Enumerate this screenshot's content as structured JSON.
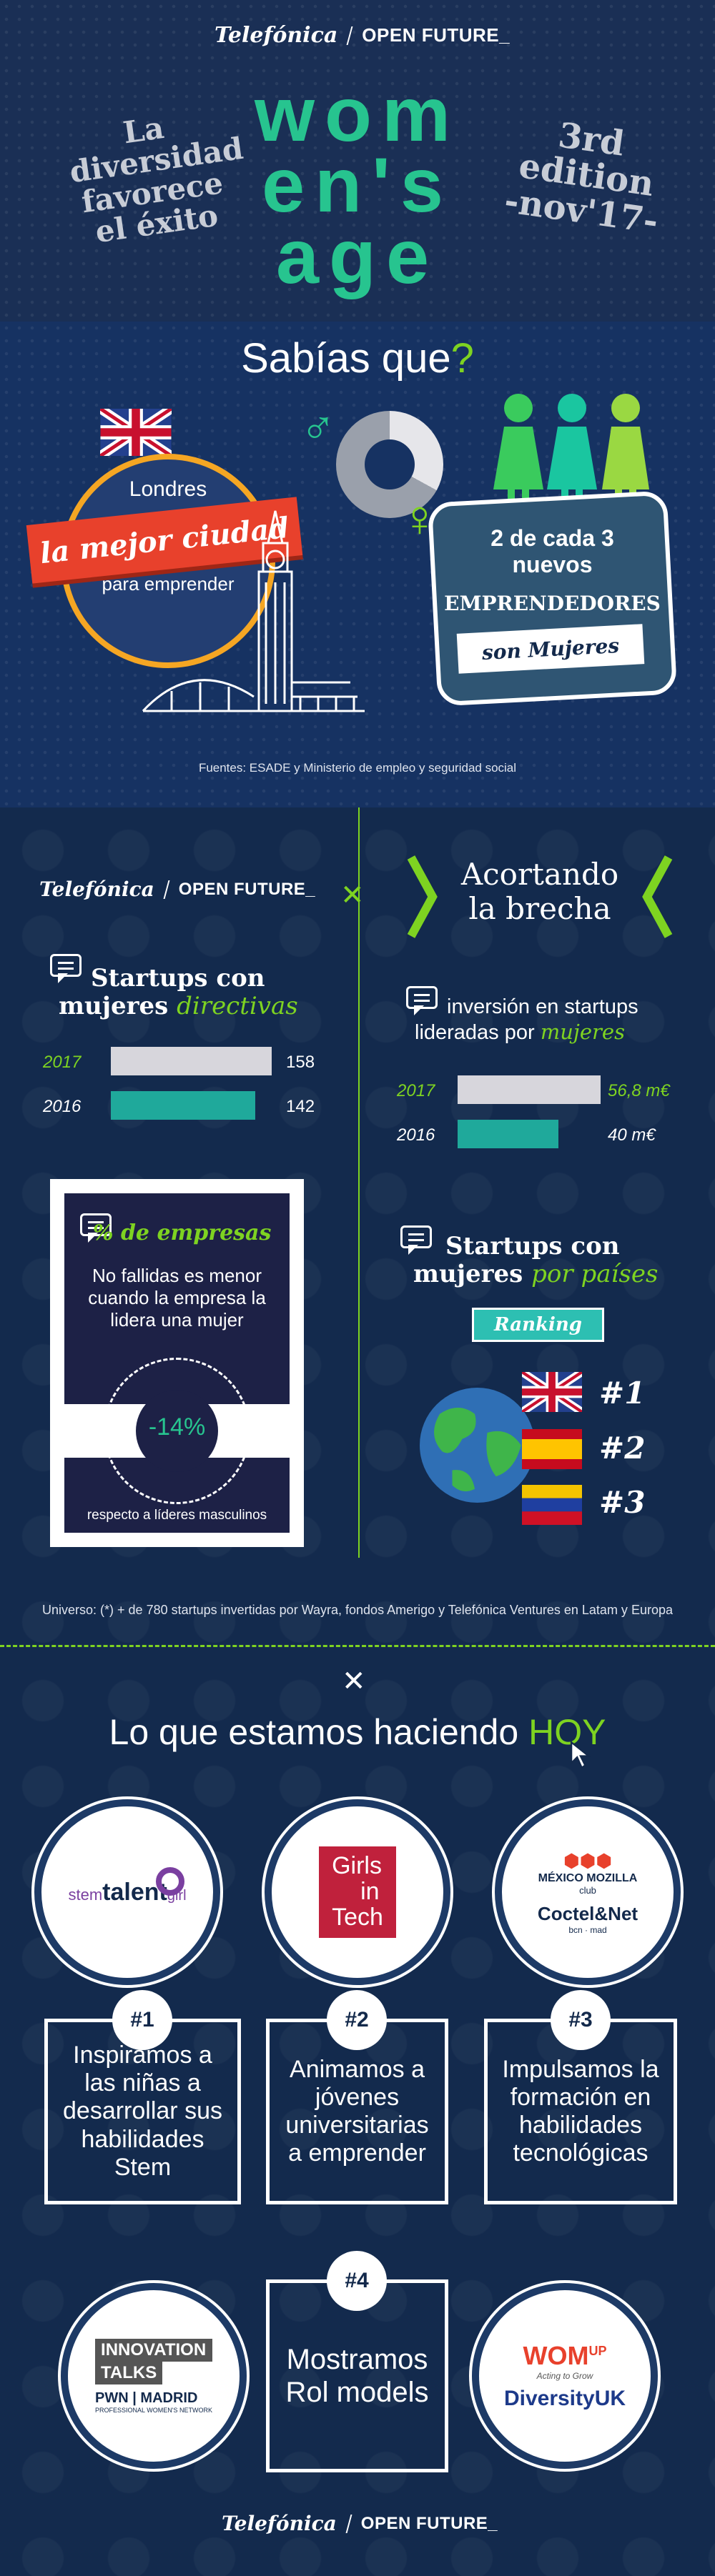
{
  "header": {
    "brand_logo": "Telefónica",
    "brand_sub": "OPEN FUTURE_",
    "left_text": [
      "La",
      "diversidad",
      "favorece",
      "el éxito"
    ],
    "title_lines": [
      "wom",
      "en's",
      "age"
    ],
    "right_text": [
      "3rd",
      "edition",
      "-nov'17-"
    ]
  },
  "sabias": {
    "title_main": "Sabías que",
    "title_mark": "?",
    "london_top": "Londres",
    "london_ribbon": "la mejor ciudad",
    "london_bottom": "para emprender",
    "sign_line1": "2 de cada 3",
    "sign_line2": "nuevos",
    "sign_line3": "EMPRENDEDORES",
    "sign_line4": "son Mujeres",
    "source": "Fuentes: ESADE y Ministerio de empleo y seguridad social",
    "male_symbol": "♂",
    "female_symbol": "♀"
  },
  "stats": {
    "brand_logo": "Telefónica",
    "brand_sub": "OPEN FUTURE_",
    "startups_title_1": "Startups con",
    "startups_title_2": "mujeres",
    "startups_title_3": "directivas",
    "startups_rows": [
      {
        "year": "2017",
        "value": "158"
      },
      {
        "year": "2016",
        "value": "142"
      }
    ],
    "empresas_title": "% de empresas",
    "empresas_text": "No fallidas es menor cuando la empresa la lidera una mujer",
    "empresas_value": "-14%",
    "empresas_note": "respecto a líderes masculinos",
    "brecha_title_1": "Acortando",
    "brecha_title_2": "la brecha",
    "inv_title_1": "inversión en startups",
    "inv_title_2": "lideradas por",
    "inv_title_3": "mujeres",
    "inv_rows": [
      {
        "year": "2017",
        "value": "56,8 m€"
      },
      {
        "year": "2016",
        "value": "40 m€"
      }
    ],
    "paises_title_1": "Startups con",
    "paises_title_2": "mujeres",
    "paises_title_3": "por países",
    "ranking_label": "Ranking",
    "ranks": [
      "#1",
      "#2",
      "#3"
    ],
    "universe": "Universo: (*) + de 780 startups invertidas por Wayra, fondos Amerigo y Telefónica Ventures en Latam y Europa"
  },
  "chart_data": [
    {
      "type": "bar",
      "title": "Startups con mujeres directivas",
      "categories": [
        "2017",
        "2016"
      ],
      "values": [
        158,
        142
      ]
    },
    {
      "type": "bar",
      "title": "inversión en startups lideradas por mujeres",
      "categories": [
        "2017",
        "2016"
      ],
      "values": [
        56.8,
        40
      ]
    }
  ],
  "hoy": {
    "title_main": "Lo que estamos haciendo",
    "title_mark": "HOY",
    "logo1_a": "stem",
    "logo1_b": "talent",
    "logo1_c": "girl",
    "logo2": [
      "Girls",
      "in",
      "Tech"
    ],
    "logo3_a": "MÉXICO MOZILLA",
    "logo3_b": "club",
    "logo3_c": "Coctel",
    "logo3_d": "&Net",
    "logo3_e": "bcn · mad",
    "items": [
      {
        "num": "#1",
        "text": "Inspiramos a las niñas a desarrollar sus habilidades Stem"
      },
      {
        "num": "#2",
        "text": "Animamos a jóvenes universitarias a emprender"
      },
      {
        "num": "#3",
        "text": "Impulsamos la formación en habilidades tecnológicas"
      },
      {
        "num": "#4",
        "text": "Mostramos Rol models"
      }
    ],
    "logo4_a": "INNOVATION",
    "logo4_b": "TALKS",
    "logo4_c": "PWN | MADRID",
    "logo4_d": "PROFESSIONAL WOMEN'S NETWORK",
    "logo5_a": "WOM",
    "logo5_b": "UP",
    "logo5_c": "Acting to Grow",
    "logo5_d": "DiversityUK",
    "footer_logo": "Telefónica",
    "footer_sub": "OPEN FUTURE_"
  },
  "colors": {
    "navy": "#13294b",
    "mint": "#27c48f",
    "lime": "#7ed321",
    "teal": "#1fa99b",
    "grey": "#d7d6dc",
    "red": "#e8412c"
  }
}
